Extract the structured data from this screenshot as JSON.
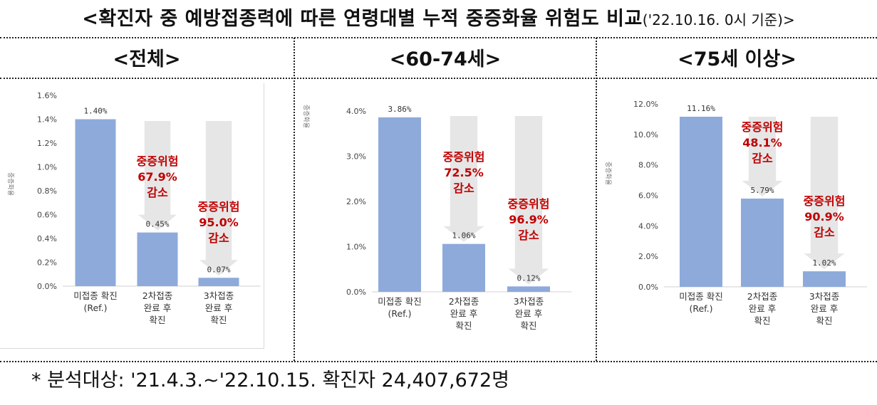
{
  "title": {
    "main": "<확진자 중 예방접종력에 따른 연령대별 누적 중증화율 위험도 비교",
    "sub": "('22.10.16. 0시 기준)>"
  },
  "footnote": "* 분석대상: '21.4.3.~'22.10.15. 확진자 24,407,672명",
  "colors": {
    "bar": "#8eaadb",
    "arrow": "#e6e6e6",
    "risk": "#c00000",
    "axis": "#555555"
  },
  "chart_data": [
    {
      "type": "bar",
      "panel_title": "<전체>",
      "ylabel": "중증화율",
      "ylim": [
        0,
        1.6
      ],
      "yticks": [
        "0.0%",
        "0.2%",
        "0.4%",
        "0.6%",
        "0.8%",
        "1.0%",
        "1.2%",
        "1.4%",
        "1.6%"
      ],
      "categories": [
        [
          "미접종 확진",
          "(Ref.)"
        ],
        [
          "2차접종",
          "완료 후",
          "확진"
        ],
        [
          "3차접종",
          "완료 후",
          "확진"
        ]
      ],
      "values": [
        1.4,
        0.45,
        0.07
      ],
      "value_labels": [
        "1.40%",
        "0.45%",
        "0.07%"
      ],
      "annotations": [
        {
          "bar": 1,
          "lines": [
            "중증위험",
            "67.9%",
            "감소"
          ]
        },
        {
          "bar": 2,
          "lines": [
            "중증위험",
            "95.0%",
            "감소"
          ]
        }
      ]
    },
    {
      "type": "bar",
      "panel_title": "<60-74세>",
      "ylabel": "중증화율",
      "ylim": [
        0,
        4.0
      ],
      "yticks": [
        "0.0%",
        "1.0%",
        "2.0%",
        "3.0%",
        "4.0%"
      ],
      "categories": [
        [
          "미접종 확진",
          "(Ref.)"
        ],
        [
          "2차접종",
          "완료 후",
          "확진"
        ],
        [
          "3차접종",
          "완료 후",
          "확진"
        ]
      ],
      "values": [
        3.86,
        1.06,
        0.12
      ],
      "value_labels": [
        "3.86%",
        "1.06%",
        "0.12%"
      ],
      "annotations": [
        {
          "bar": 1,
          "lines": [
            "중증위험",
            "72.5%",
            "감소"
          ]
        },
        {
          "bar": 2,
          "lines": [
            "중증위험",
            "96.9%",
            "감소"
          ]
        }
      ]
    },
    {
      "type": "bar",
      "panel_title": "<75세 이상>",
      "ylabel": "중증화율",
      "ylim": [
        0,
        12.0
      ],
      "yticks": [
        "0.0%",
        "2.0%",
        "4.0%",
        "6.0%",
        "8.0%",
        "10.0%",
        "12.0%"
      ],
      "categories": [
        [
          "미접종 확진",
          "(Ref.)"
        ],
        [
          "2차접종",
          "완료 후",
          "확진"
        ],
        [
          "3차접종",
          "완료 후",
          "확진"
        ]
      ],
      "values": [
        11.16,
        5.79,
        1.02
      ],
      "value_labels": [
        "11.16%",
        "5.79%",
        "1.02%"
      ],
      "annotations": [
        {
          "bar": 1,
          "lines": [
            "중증위험",
            "48.1%",
            "감소"
          ]
        },
        {
          "bar": 2,
          "lines": [
            "중증위험",
            "90.9%",
            "감소"
          ]
        }
      ]
    }
  ]
}
